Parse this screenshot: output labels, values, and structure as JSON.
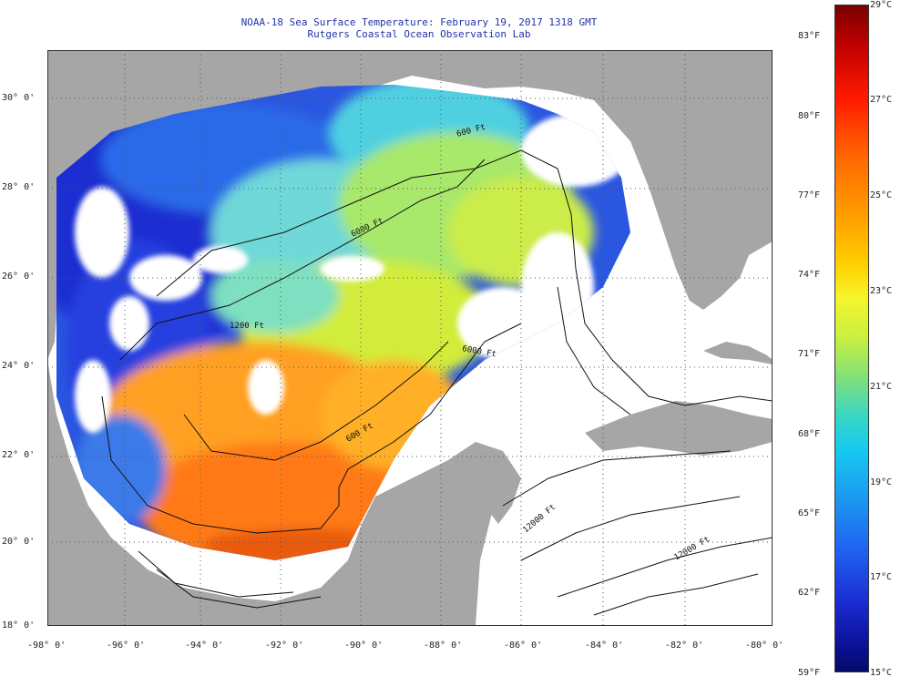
{
  "title": {
    "line1": "NOAA-18 Sea Surface Temperature:  February 19, 2017 1318 GMT",
    "line2": "Rutgers Coastal Ocean Observation Lab"
  },
  "axes": {
    "lon_labels": [
      "-98° 0'",
      "-96° 0'",
      "-94° 0'",
      "-92° 0'",
      "-90° 0'",
      "-88° 0'",
      "-86° 0'",
      "-84° 0'",
      "-82° 0'",
      "-80° 0'"
    ],
    "lat_labels": [
      "30° 0'",
      "28° 0'",
      "26° 0'",
      "24° 0'",
      "22° 0'",
      "20° 0'",
      "18° 0'"
    ]
  },
  "colorbar": {
    "fahrenheit": [
      "83°F",
      "80°F",
      "77°F",
      "74°F",
      "71°F",
      "68°F",
      "65°F",
      "62°F",
      "59°F"
    ],
    "celsius": [
      "29°C",
      "27°C",
      "25°C",
      "23°C",
      "21°C",
      "19°C",
      "17°C",
      "15°C"
    ]
  },
  "contours": [
    "600 Ft",
    "6000 Ft",
    "1200 Ft",
    "6000 Ft",
    "600 Ft",
    "12000 Ft",
    "12000 Ft"
  ],
  "colors": {
    "land": "#a6a6a6",
    "cloud": "#ffffff",
    "title": "#2233aa"
  }
}
